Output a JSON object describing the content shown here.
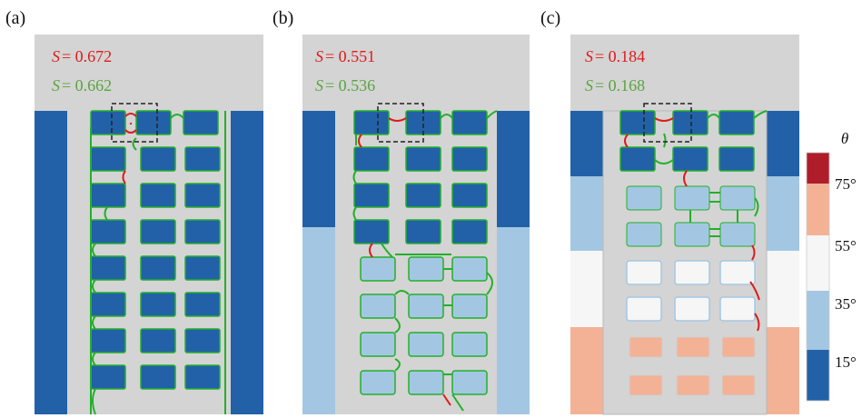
{
  "colors": {
    "background": "#d4d4d4",
    "dark_blue": "#2261a8",
    "light_blue": "#a3c7e2",
    "white": "#f6f6f6",
    "salmon": "#f3b296",
    "dark_red": "#b01d2a",
    "green": "#22b02a",
    "red": "#e01a1a"
  },
  "panels": [
    {
      "label": "(a)",
      "s_red": {
        "var": "S",
        "value": "= 0.672"
      },
      "s_green": {
        "var": "S",
        "value": "= 0.662"
      }
    },
    {
      "label": "(b)",
      "s_red": {
        "var": "S",
        "value": "= 0.551"
      },
      "s_green": {
        "var": "S",
        "value": "= 0.536"
      }
    },
    {
      "label": "(c)",
      "s_red": {
        "var": "S",
        "value": "= 0.184"
      },
      "s_green": {
        "var": "S",
        "value": "= 0.168"
      }
    }
  ],
  "colorbar": {
    "title": "θ",
    "ticks": [
      "75°",
      "55°",
      "35°",
      "15°"
    ]
  }
}
